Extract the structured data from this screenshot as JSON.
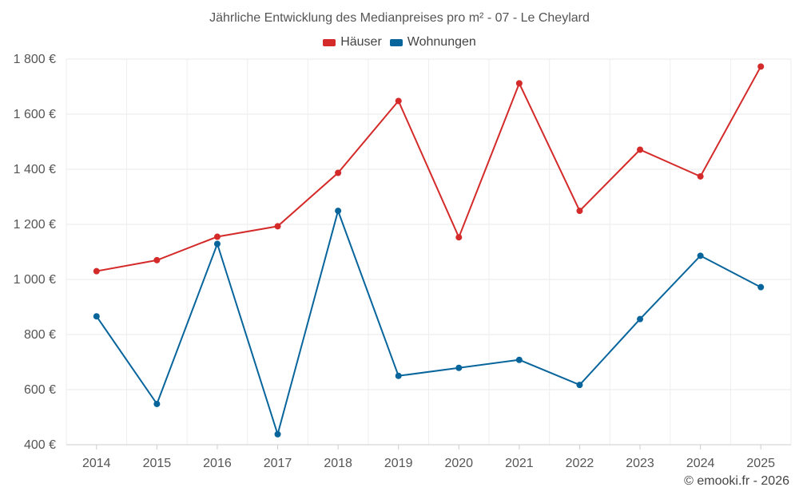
{
  "chart_data": {
    "type": "line",
    "title": "Jährliche Entwicklung des Medianpreises pro m² - 07 - Le Cheylard",
    "categories": [
      "2014",
      "2015",
      "2016",
      "2017",
      "2018",
      "2019",
      "2020",
      "2021",
      "2022",
      "2023",
      "2024",
      "2025"
    ],
    "series": [
      {
        "name": "Häuser",
        "color": "#d42a2a",
        "values": [
          1030,
          1070,
          1155,
          1193,
          1387,
          1648,
          1153,
          1712,
          1249,
          1471,
          1374,
          1773
        ]
      },
      {
        "name": "Wohnungen",
        "color": "#07659c",
        "values": [
          866,
          548,
          1129,
          438,
          1249,
          650,
          679,
          708,
          617,
          856,
          1086,
          972
        ]
      }
    ],
    "ylim": [
      400,
      1800
    ],
    "yticks": [
      400,
      600,
      800,
      1000,
      1200,
      1400,
      1600,
      1800
    ],
    "ytick_labels": [
      "400 €",
      "600 €",
      "800 €",
      "1 000 €",
      "1 200 €",
      "1 400 €",
      "1 600 €",
      "1 800 €"
    ],
    "xlabel": "",
    "ylabel": "",
    "grid": true,
    "legend_position": "top-center"
  },
  "footer": {
    "credit": "© emooki.fr - 2026"
  }
}
